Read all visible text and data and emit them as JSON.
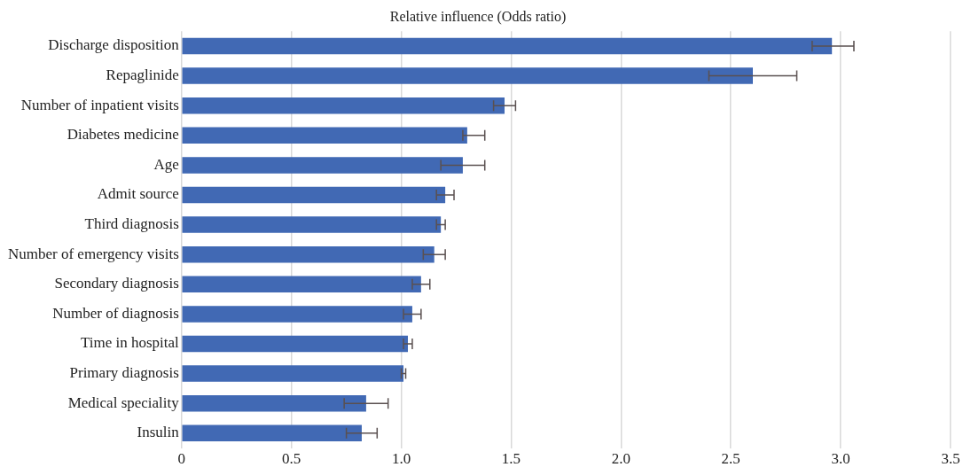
{
  "chart_data": {
    "type": "bar",
    "orientation": "horizontal",
    "title": "Relative influence (Odds ratio)",
    "categories": [
      "Discharge disposition",
      "Repaglinide",
      "Number of inpatient visits",
      "Diabetes medicine",
      "Age",
      "Admit source",
      "Third diagnosis",
      "Number of emergency visits",
      "Secondary diagnosis",
      "Number of diagnosis",
      "Time in hospital",
      "Primary diagnosis",
      "Medical speciality",
      "Insulin"
    ],
    "values": [
      2.96,
      2.6,
      1.47,
      1.3,
      1.28,
      1.2,
      1.18,
      1.15,
      1.09,
      1.05,
      1.03,
      1.01,
      0.84,
      0.82
    ],
    "errors": [
      [
        2.87,
        3.06
      ],
      [
        2.4,
        2.8
      ],
      [
        1.42,
        1.52
      ],
      [
        1.28,
        1.38
      ],
      [
        1.18,
        1.38
      ],
      [
        1.16,
        1.24
      ],
      [
        1.16,
        1.2
      ],
      [
        1.1,
        1.2
      ],
      [
        1.05,
        1.13
      ],
      [
        1.01,
        1.09
      ],
      [
        1.01,
        1.05
      ],
      [
        1.0,
        1.02
      ],
      [
        0.74,
        0.94
      ],
      [
        0.75,
        0.89
      ]
    ],
    "color": "#4169b4",
    "xlim": [
      0,
      3.5
    ],
    "xticks": [
      0,
      {
        "value": 0.5,
        "label": "0.5"
      },
      {
        "value": 1,
        "label": "1.0"
      },
      {
        "value": 1.5,
        "label": "1.5"
      },
      {
        "value": 2,
        "label": "2.0"
      },
      {
        "value": 2.5,
        "label": "2.5"
      },
      {
        "value": 3,
        "label": "3.0"
      },
      {
        "value": 3.5,
        "label": "3.5"
      }
    ],
    "grid": "x"
  }
}
